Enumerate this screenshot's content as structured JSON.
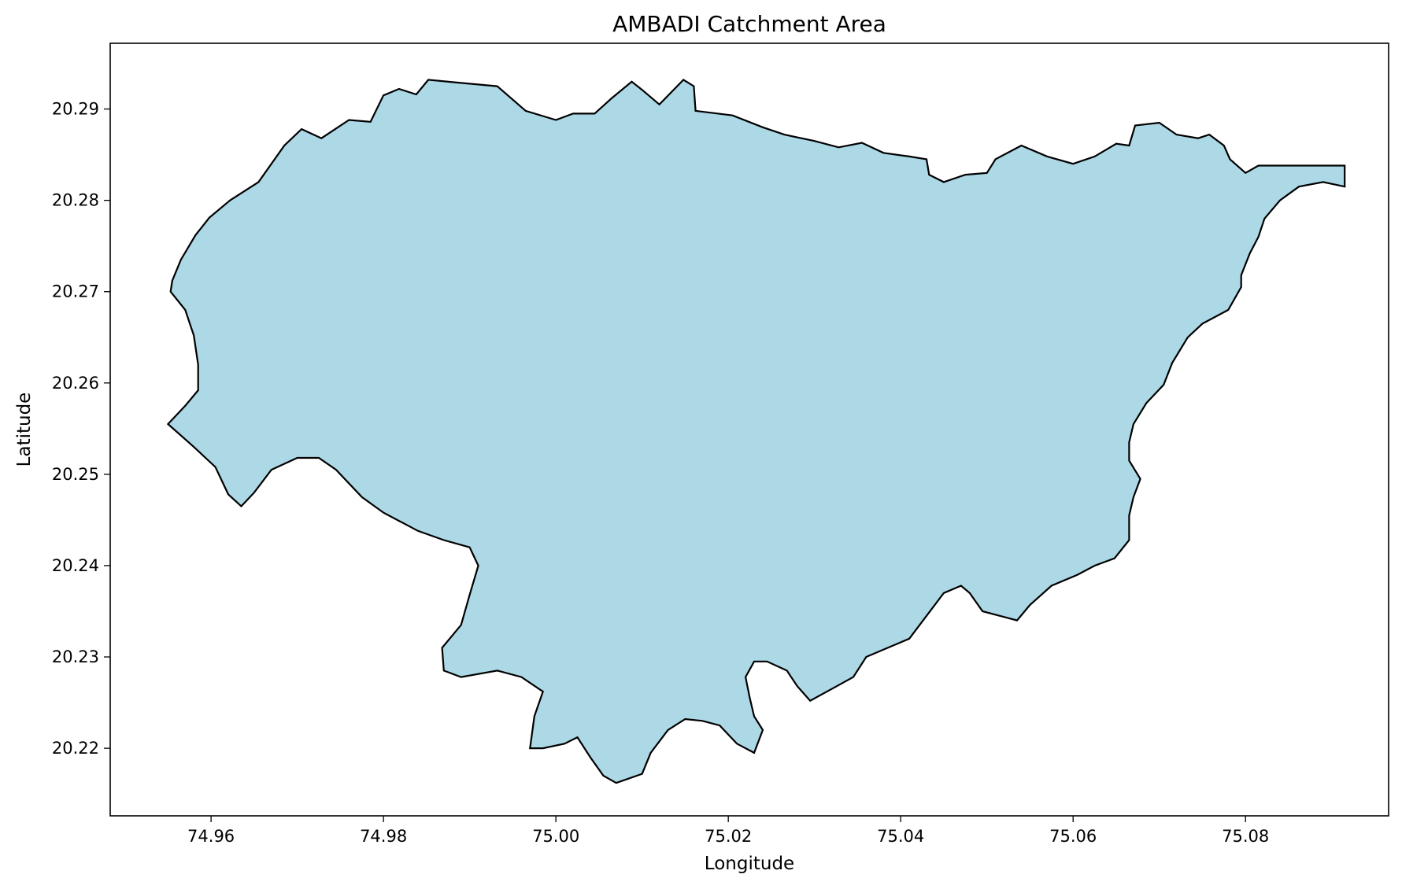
{
  "chart_data": {
    "type": "map",
    "title": "AMBADI Catchment Area",
    "xlabel": "Longitude",
    "ylabel": "Latitude",
    "xlim": [
      74.9483,
      75.0966
    ],
    "ylim": [
      20.2126,
      20.2972
    ],
    "xticks": [
      74.96,
      74.98,
      75.0,
      75.02,
      75.04,
      75.06,
      75.08
    ],
    "xtick_labels": [
      "74.96",
      "74.98",
      "75.00",
      "75.02",
      "75.04",
      "75.06",
      "75.08"
    ],
    "yticks": [
      20.22,
      20.23,
      20.24,
      20.25,
      20.26,
      20.27,
      20.28,
      20.29
    ],
    "ytick_labels": [
      "20.22",
      "20.23",
      "20.24",
      "20.25",
      "20.26",
      "20.27",
      "20.28",
      "20.29"
    ],
    "grid": false,
    "fill_color": "#add8e6",
    "edge_color": "#000000",
    "polygon": [
      [
        74.9555,
        20.2712
      ],
      [
        74.9565,
        20.2735
      ],
      [
        74.9582,
        20.2762
      ],
      [
        74.9598,
        20.2781
      ],
      [
        74.9622,
        20.28
      ],
      [
        74.9655,
        20.282
      ],
      [
        74.9685,
        20.286
      ],
      [
        74.9705,
        20.2878
      ],
      [
        74.9728,
        20.2868
      ],
      [
        74.976,
        20.2888
      ],
      [
        74.9785,
        20.2886
      ],
      [
        74.98,
        20.2915
      ],
      [
        74.9818,
        20.2922
      ],
      [
        74.9838,
        20.2916
      ],
      [
        74.9852,
        20.2932
      ],
      [
        74.9885,
        20.2929
      ],
      [
        74.9932,
        20.2925
      ],
      [
        74.9965,
        20.2898
      ],
      [
        75.0,
        20.2888
      ],
      [
        75.002,
        20.2895
      ],
      [
        75.0045,
        20.2895
      ],
      [
        75.0065,
        20.2912
      ],
      [
        75.0088,
        20.293
      ],
      [
        75.01,
        20.2921
      ],
      [
        75.012,
        20.2905
      ],
      [
        75.0148,
        20.2932
      ],
      [
        75.016,
        20.2925
      ],
      [
        75.0162,
        20.2898
      ],
      [
        75.0205,
        20.2893
      ],
      [
        75.024,
        20.288
      ],
      [
        75.0265,
        20.2872
      ],
      [
        75.03,
        20.2865
      ],
      [
        75.0328,
        20.2858
      ],
      [
        75.0355,
        20.2863
      ],
      [
        75.038,
        20.2852
      ],
      [
        75.041,
        20.2848
      ],
      [
        75.043,
        20.2845
      ],
      [
        75.0433,
        20.2828
      ],
      [
        75.045,
        20.282
      ],
      [
        75.0475,
        20.2828
      ],
      [
        75.05,
        20.283
      ],
      [
        75.051,
        20.2845
      ],
      [
        75.054,
        20.286
      ],
      [
        75.057,
        20.2848
      ],
      [
        75.06,
        20.284
      ],
      [
        75.0625,
        20.2848
      ],
      [
        75.065,
        20.2862
      ],
      [
        75.0665,
        20.286
      ],
      [
        75.0672,
        20.2882
      ],
      [
        75.07,
        20.2885
      ],
      [
        75.072,
        20.2872
      ],
      [
        75.0745,
        20.2868
      ],
      [
        75.0758,
        20.2872
      ],
      [
        75.0775,
        20.286
      ],
      [
        75.0782,
        20.2845
      ],
      [
        75.08,
        20.283
      ],
      [
        75.0815,
        20.2838
      ],
      [
        75.0915,
        20.2838
      ],
      [
        75.0915,
        20.2815
      ],
      [
        75.089,
        20.282
      ],
      [
        75.0862,
        20.2815
      ],
      [
        75.084,
        20.28
      ],
      [
        75.0822,
        20.278
      ],
      [
        75.0815,
        20.276
      ],
      [
        75.0805,
        20.2742
      ],
      [
        75.0795,
        20.2718
      ],
      [
        75.0795,
        20.2705
      ],
      [
        75.078,
        20.268
      ],
      [
        75.075,
        20.2665
      ],
      [
        75.0733,
        20.265
      ],
      [
        75.0715,
        20.2622
      ],
      [
        75.0705,
        20.2598
      ],
      [
        75.0685,
        20.2578
      ],
      [
        75.067,
        20.2555
      ],
      [
        75.0665,
        20.2535
      ],
      [
        75.0665,
        20.2515
      ],
      [
        75.0678,
        20.2495
      ],
      [
        75.067,
        20.2475
      ],
      [
        75.0665,
        20.2455
      ],
      [
        75.0665,
        20.2428
      ],
      [
        75.0648,
        20.2408
      ],
      [
        75.0625,
        20.24
      ],
      [
        75.0605,
        20.239
      ],
      [
        75.0575,
        20.2378
      ],
      [
        75.055,
        20.2357
      ],
      [
        75.0535,
        20.234
      ],
      [
        75.0515,
        20.2345
      ],
      [
        75.0495,
        20.235
      ],
      [
        75.048,
        20.237
      ],
      [
        75.047,
        20.2378
      ],
      [
        75.045,
        20.237
      ],
      [
        75.043,
        20.2345
      ],
      [
        75.041,
        20.232
      ],
      [
        75.0385,
        20.231
      ],
      [
        75.036,
        20.23
      ],
      [
        75.0345,
        20.2278
      ],
      [
        75.032,
        20.2265
      ],
      [
        75.0295,
        20.2252
      ],
      [
        75.028,
        20.2268
      ],
      [
        75.0268,
        20.2285
      ],
      [
        75.0245,
        20.2295
      ],
      [
        75.023,
        20.2295
      ],
      [
        75.022,
        20.2278
      ],
      [
        75.0225,
        20.2255
      ],
      [
        75.023,
        20.2235
      ],
      [
        75.024,
        20.222
      ],
      [
        75.023,
        20.2195
      ],
      [
        75.021,
        20.2205
      ],
      [
        75.019,
        20.2225
      ],
      [
        75.017,
        20.223
      ],
      [
        75.015,
        20.2232
      ],
      [
        75.013,
        20.222
      ],
      [
        75.011,
        20.2195
      ],
      [
        75.01,
        20.2172
      ],
      [
        75.007,
        20.2162
      ],
      [
        75.0055,
        20.217
      ],
      [
        75.004,
        20.219
      ],
      [
        75.0025,
        20.2212
      ],
      [
        75.001,
        20.2205
      ],
      [
        74.9985,
        20.22
      ],
      [
        74.997,
        20.22
      ],
      [
        74.9975,
        20.2235
      ],
      [
        74.9985,
        20.2262
      ],
      [
        74.996,
        20.2278
      ],
      [
        74.9932,
        20.2285
      ],
      [
        74.989,
        20.2278
      ],
      [
        74.987,
        20.2285
      ],
      [
        74.9868,
        20.231
      ],
      [
        74.989,
        20.2335
      ],
      [
        74.99,
        20.2368
      ],
      [
        74.991,
        20.24
      ],
      [
        74.99,
        20.242
      ],
      [
        74.987,
        20.2428
      ],
      [
        74.984,
        20.2438
      ],
      [
        74.98,
        20.2458
      ],
      [
        74.9775,
        20.2475
      ],
      [
        74.9745,
        20.2505
      ],
      [
        74.9725,
        20.2518
      ],
      [
        74.97,
        20.2518
      ],
      [
        74.967,
        20.2505
      ],
      [
        74.965,
        20.248
      ],
      [
        74.9635,
        20.2465
      ],
      [
        74.962,
        20.2478
      ],
      [
        74.9605,
        20.2508
      ],
      [
        74.958,
        20.253
      ],
      [
        74.955,
        20.2555
      ],
      [
        74.957,
        20.2575
      ],
      [
        74.9585,
        20.2592
      ],
      [
        74.9585,
        20.262
      ],
      [
        74.958,
        20.2652
      ],
      [
        74.957,
        20.268
      ],
      [
        74.9553,
        20.27
      ]
    ]
  }
}
